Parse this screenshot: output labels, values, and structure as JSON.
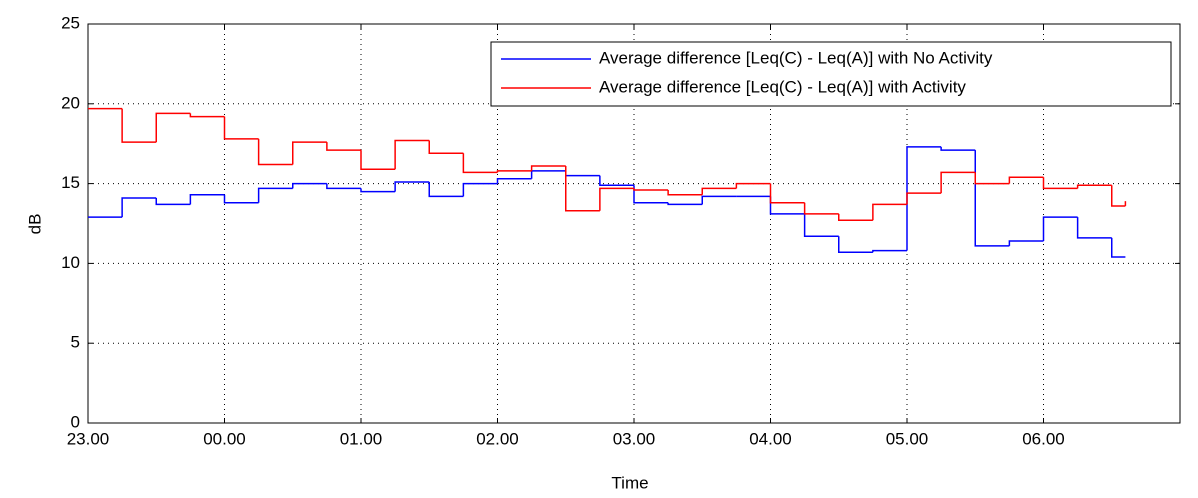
{
  "chart_data": {
    "type": "stairs",
    "xlabel": "Time",
    "ylabel": "dB",
    "x": [
      0,
      0.25,
      0.5,
      0.75,
      1,
      1.25,
      1.5,
      1.75,
      2,
      2.25,
      2.5,
      2.75,
      3,
      3.25,
      3.5,
      3.75,
      4,
      4.25,
      4.5,
      4.75,
      5,
      5.25,
      5.5,
      5.75,
      6,
      6.25,
      6.5,
      6.75,
      7,
      7.25,
      7.5,
      7.6
    ],
    "series": [
      {
        "name": "Average difference [Leq(C) - Leq(A)] with No Activity",
        "color": "#0000ff",
        "values": [
          12.9,
          14.1,
          13.7,
          14.3,
          13.8,
          14.7,
          15.0,
          14.7,
          14.5,
          15.1,
          14.2,
          15.0,
          15.3,
          15.8,
          15.5,
          14.9,
          13.8,
          13.7,
          14.2,
          14.2,
          13.1,
          11.7,
          10.7,
          10.8,
          17.3,
          17.1,
          11.1,
          11.4,
          12.9,
          11.6,
          10.4,
          10.4
        ]
      },
      {
        "name": "Average difference [Leq(C) - Leq(A)] with Activity",
        "color": "#ff0000",
        "values": [
          19.7,
          17.6,
          19.4,
          19.2,
          17.8,
          16.2,
          17.6,
          17.1,
          15.9,
          17.7,
          16.9,
          15.7,
          15.8,
          16.1,
          13.3,
          14.7,
          14.6,
          14.3,
          14.7,
          15.0,
          13.8,
          13.1,
          12.7,
          13.7,
          14.4,
          15.7,
          15.0,
          15.4,
          14.7,
          14.9,
          13.6,
          13.9
        ]
      }
    ],
    "xlim": [
      0,
      8
    ],
    "xticks": [
      {
        "value": 0,
        "label": "23.00"
      },
      {
        "value": 1,
        "label": "00.00"
      },
      {
        "value": 2,
        "label": "01.00"
      },
      {
        "value": 3,
        "label": "02.00"
      },
      {
        "value": 4,
        "label": "03.00"
      },
      {
        "value": 5,
        "label": "04.00"
      },
      {
        "value": 6,
        "label": "05.00"
      },
      {
        "value": 7,
        "label": "06.00"
      }
    ],
    "ylim": [
      0,
      25
    ],
    "yticks": [
      0,
      5,
      10,
      15,
      20,
      25
    ],
    "grid": true,
    "legend": "upper right"
  }
}
